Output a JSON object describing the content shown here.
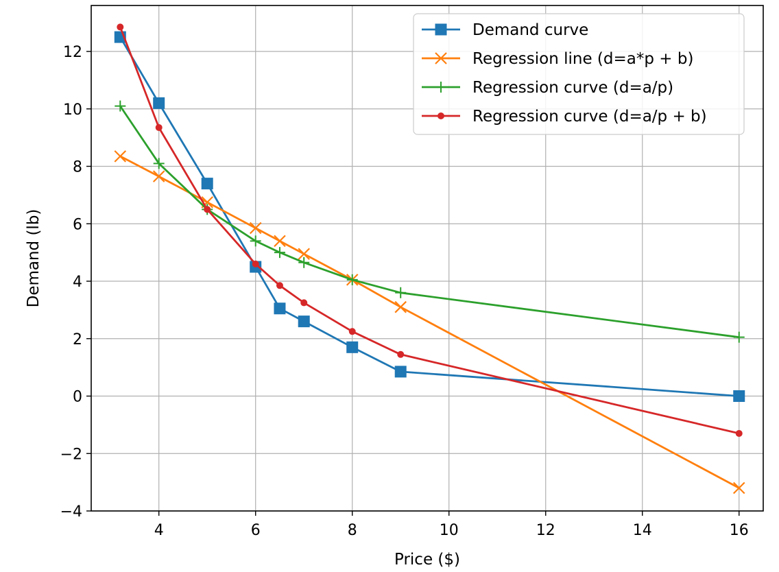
{
  "chart_data": {
    "type": "line",
    "title": "",
    "xlabel": "Price ($)",
    "ylabel": "Demand (lb)",
    "xlim": [
      2.6,
      16.5
    ],
    "ylim": [
      -4,
      13.6
    ],
    "xticks": [
      4,
      6,
      8,
      10,
      12,
      14,
      16
    ],
    "yticks": [
      -4,
      -2,
      0,
      2,
      4,
      6,
      8,
      10,
      12
    ],
    "grid": true,
    "legend_position": "top-right",
    "series": [
      {
        "name": "Demand curve",
        "color": "#1f77b4",
        "marker": "square",
        "x": [
          3.2,
          4,
          5,
          6,
          6.5,
          7,
          8,
          9,
          16
        ],
        "y": [
          12.5,
          10.2,
          7.4,
          4.5,
          3.05,
          2.6,
          1.7,
          0.85,
          0
        ]
      },
      {
        "name": "Regression line (d=a*p + b)",
        "color": "#ff7f0e",
        "marker": "x",
        "x": [
          3.2,
          4,
          5,
          6,
          6.5,
          7,
          8,
          9,
          16
        ],
        "y": [
          8.35,
          7.65,
          6.75,
          5.85,
          5.4,
          4.95,
          4.05,
          3.1,
          -3.2
        ]
      },
      {
        "name": "Regression curve (d=a/p)",
        "color": "#2ca02c",
        "marker": "plus",
        "x": [
          3.2,
          4,
          5,
          6,
          6.5,
          7,
          8,
          9,
          16
        ],
        "y": [
          10.1,
          8.1,
          6.5,
          5.4,
          5.0,
          4.65,
          4.05,
          3.6,
          2.05
        ]
      },
      {
        "name": "Regression curve (d=a/p + b)",
        "color": "#d62728",
        "marker": "dot",
        "x": [
          3.2,
          4,
          5,
          6,
          6.5,
          7,
          8,
          9,
          16
        ],
        "y": [
          12.85,
          9.35,
          6.5,
          4.6,
          3.85,
          3.25,
          2.25,
          1.45,
          -1.3
        ]
      }
    ]
  }
}
